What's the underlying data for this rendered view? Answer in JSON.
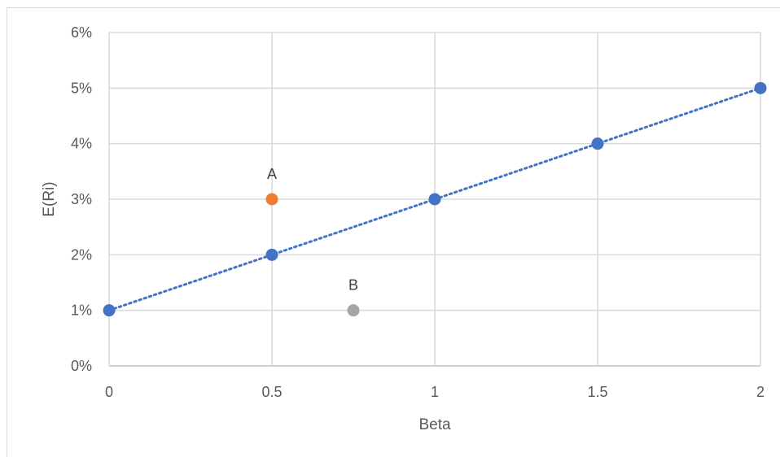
{
  "chart_data": {
    "type": "scatter",
    "title": "",
    "xlabel": "Beta",
    "ylabel": "E(Ri)",
    "xlim": [
      0,
      2
    ],
    "ylim": [
      0,
      0.06
    ],
    "x_ticks": [
      "0",
      "0.5",
      "1",
      "1.5",
      "2"
    ],
    "y_ticks": [
      "0%",
      "1%",
      "2%",
      "3%",
      "4%",
      "5%",
      "6%"
    ],
    "grid": true,
    "legend": "none",
    "series": [
      {
        "color": "#4472c4",
        "line": "dotted",
        "points": [
          {
            "x": 0,
            "y": 0.01
          },
          {
            "x": 0.5,
            "y": 0.02
          },
          {
            "x": 1,
            "y": 0.03
          },
          {
            "x": 1.5,
            "y": 0.04
          },
          {
            "x": 2,
            "y": 0.05
          }
        ]
      },
      {
        "color": "#ed7d31",
        "points": [
          {
            "x": 0.5,
            "y": 0.03,
            "label": "A"
          }
        ]
      },
      {
        "color": "#a5a5a5",
        "points": [
          {
            "x": 0.75,
            "y": 0.01,
            "label": "B"
          }
        ]
      }
    ]
  }
}
